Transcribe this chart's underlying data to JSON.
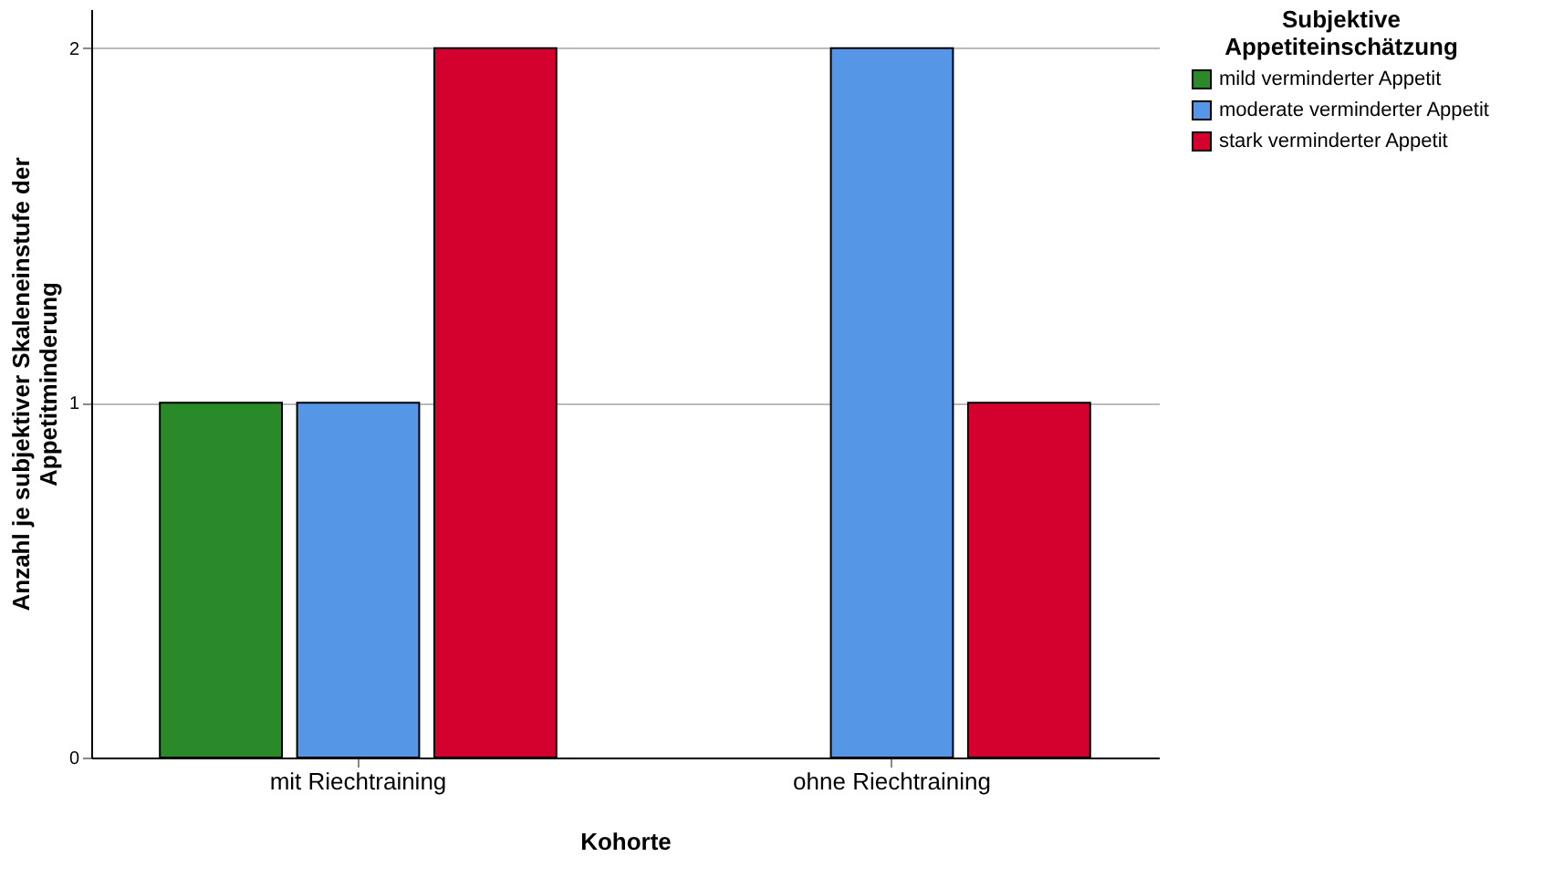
{
  "chart_data": {
    "type": "bar",
    "xlabel": "Kohorte",
    "ylabel": "Anzahl je subjektiver Skaleneinstufe der Appetitminderung",
    "legend_title": "Subjektive Appetiteinschätzung",
    "categories": [
      "mit Riechtraining",
      "ohne Riechtraining"
    ],
    "series": [
      {
        "name": "mild verminderter Appetit",
        "color": "#2a8a2a",
        "values": [
          1,
          null
        ]
      },
      {
        "name": "moderate verminderter Appetit",
        "color": "#5596e6",
        "values": [
          1,
          2
        ]
      },
      {
        "name": "stark verminderter Appetit",
        "color": "#d4002d",
        "values": [
          2,
          1
        ]
      }
    ],
    "ylim": [
      0,
      2.11
    ],
    "yticks": [
      0,
      1,
      2
    ],
    "grid": "y",
    "legend": "top right"
  }
}
